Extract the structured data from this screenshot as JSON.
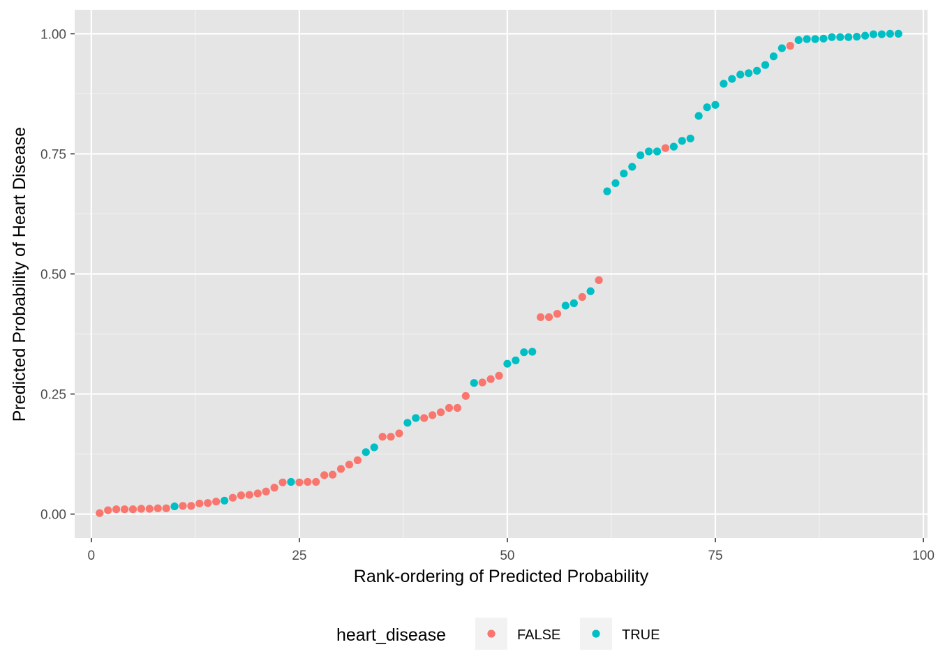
{
  "chart_data": {
    "type": "scatter",
    "title": "",
    "xlabel": "Rank-ordering of Predicted Probability",
    "ylabel": "Predicted Probability of Heart Disease",
    "xlim": [
      -2,
      100.5
    ],
    "ylim": [
      -0.05,
      1.05
    ],
    "x_ticks": [
      0,
      25,
      50,
      75,
      100
    ],
    "x_tick_labels": [
      "0",
      "25",
      "50",
      "75",
      "100"
    ],
    "y_ticks": [
      0,
      0.25,
      0.5,
      0.75,
      1
    ],
    "y_tick_labels": [
      "0.00",
      "0.25",
      "0.50",
      "0.75",
      "1.00"
    ],
    "grid": true,
    "legend": {
      "title": "heart_disease",
      "position": "bottom",
      "entries": [
        {
          "label": "FALSE",
          "color": "#F8766D"
        },
        {
          "label": "TRUE",
          "color": "#00BFC4"
        }
      ]
    },
    "series": [
      {
        "name": "FALSE",
        "color": "#F8766D",
        "x": [
          1,
          2,
          3,
          4,
          5,
          6,
          7,
          8,
          9,
          11,
          12,
          13,
          14,
          15,
          17,
          18,
          19,
          20,
          21,
          22,
          23,
          25,
          26,
          27,
          28,
          29,
          30,
          31,
          32,
          35,
          36,
          37,
          40,
          41,
          42,
          43,
          44,
          45,
          47,
          48,
          49,
          54,
          55,
          56,
          59,
          61,
          69,
          84
        ],
        "y": [
          0.002,
          0.008,
          0.01,
          0.01,
          0.01,
          0.011,
          0.011,
          0.012,
          0.012,
          0.017,
          0.017,
          0.022,
          0.023,
          0.026,
          0.034,
          0.039,
          0.04,
          0.043,
          0.047,
          0.055,
          0.066,
          0.066,
          0.067,
          0.067,
          0.081,
          0.082,
          0.094,
          0.103,
          0.112,
          0.161,
          0.161,
          0.168,
          0.2,
          0.206,
          0.212,
          0.221,
          0.221,
          0.246,
          0.274,
          0.281,
          0.288,
          0.41,
          0.41,
          0.417,
          0.452,
          0.487,
          0.762,
          0.975
        ]
      },
      {
        "name": "TRUE",
        "color": "#00BFC4",
        "x": [
          10,
          16,
          24,
          33,
          34,
          38,
          39,
          46,
          50,
          51,
          52,
          53,
          57,
          58,
          60,
          62,
          63,
          64,
          65,
          66,
          67,
          68,
          70,
          71,
          72,
          73,
          74,
          75,
          76,
          77,
          78,
          79,
          80,
          81,
          82,
          83,
          85,
          86,
          87,
          88,
          89,
          90,
          91,
          92,
          93,
          94,
          95,
          96,
          97
        ],
        "y": [
          0.016,
          0.028,
          0.067,
          0.129,
          0.139,
          0.19,
          0.2,
          0.273,
          0.313,
          0.32,
          0.337,
          0.338,
          0.434,
          0.439,
          0.464,
          0.672,
          0.689,
          0.709,
          0.723,
          0.747,
          0.755,
          0.755,
          0.765,
          0.777,
          0.782,
          0.829,
          0.847,
          0.852,
          0.896,
          0.906,
          0.915,
          0.918,
          0.923,
          0.935,
          0.953,
          0.97,
          0.987,
          0.989,
          0.989,
          0.99,
          0.993,
          0.993,
          0.993,
          0.994,
          0.996,
          0.999,
          0.999,
          1.0,
          1.0
        ]
      }
    ]
  }
}
